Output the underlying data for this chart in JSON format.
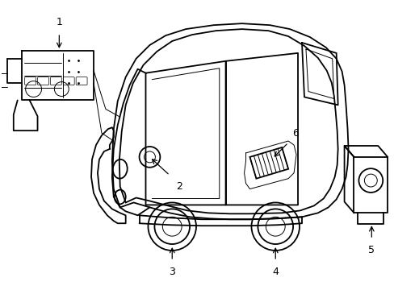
{
  "background_color": "#ffffff",
  "line_color": "#000000",
  "line_width": 1.3,
  "thin_lw": 0.7,
  "label_fontsize": 9
}
